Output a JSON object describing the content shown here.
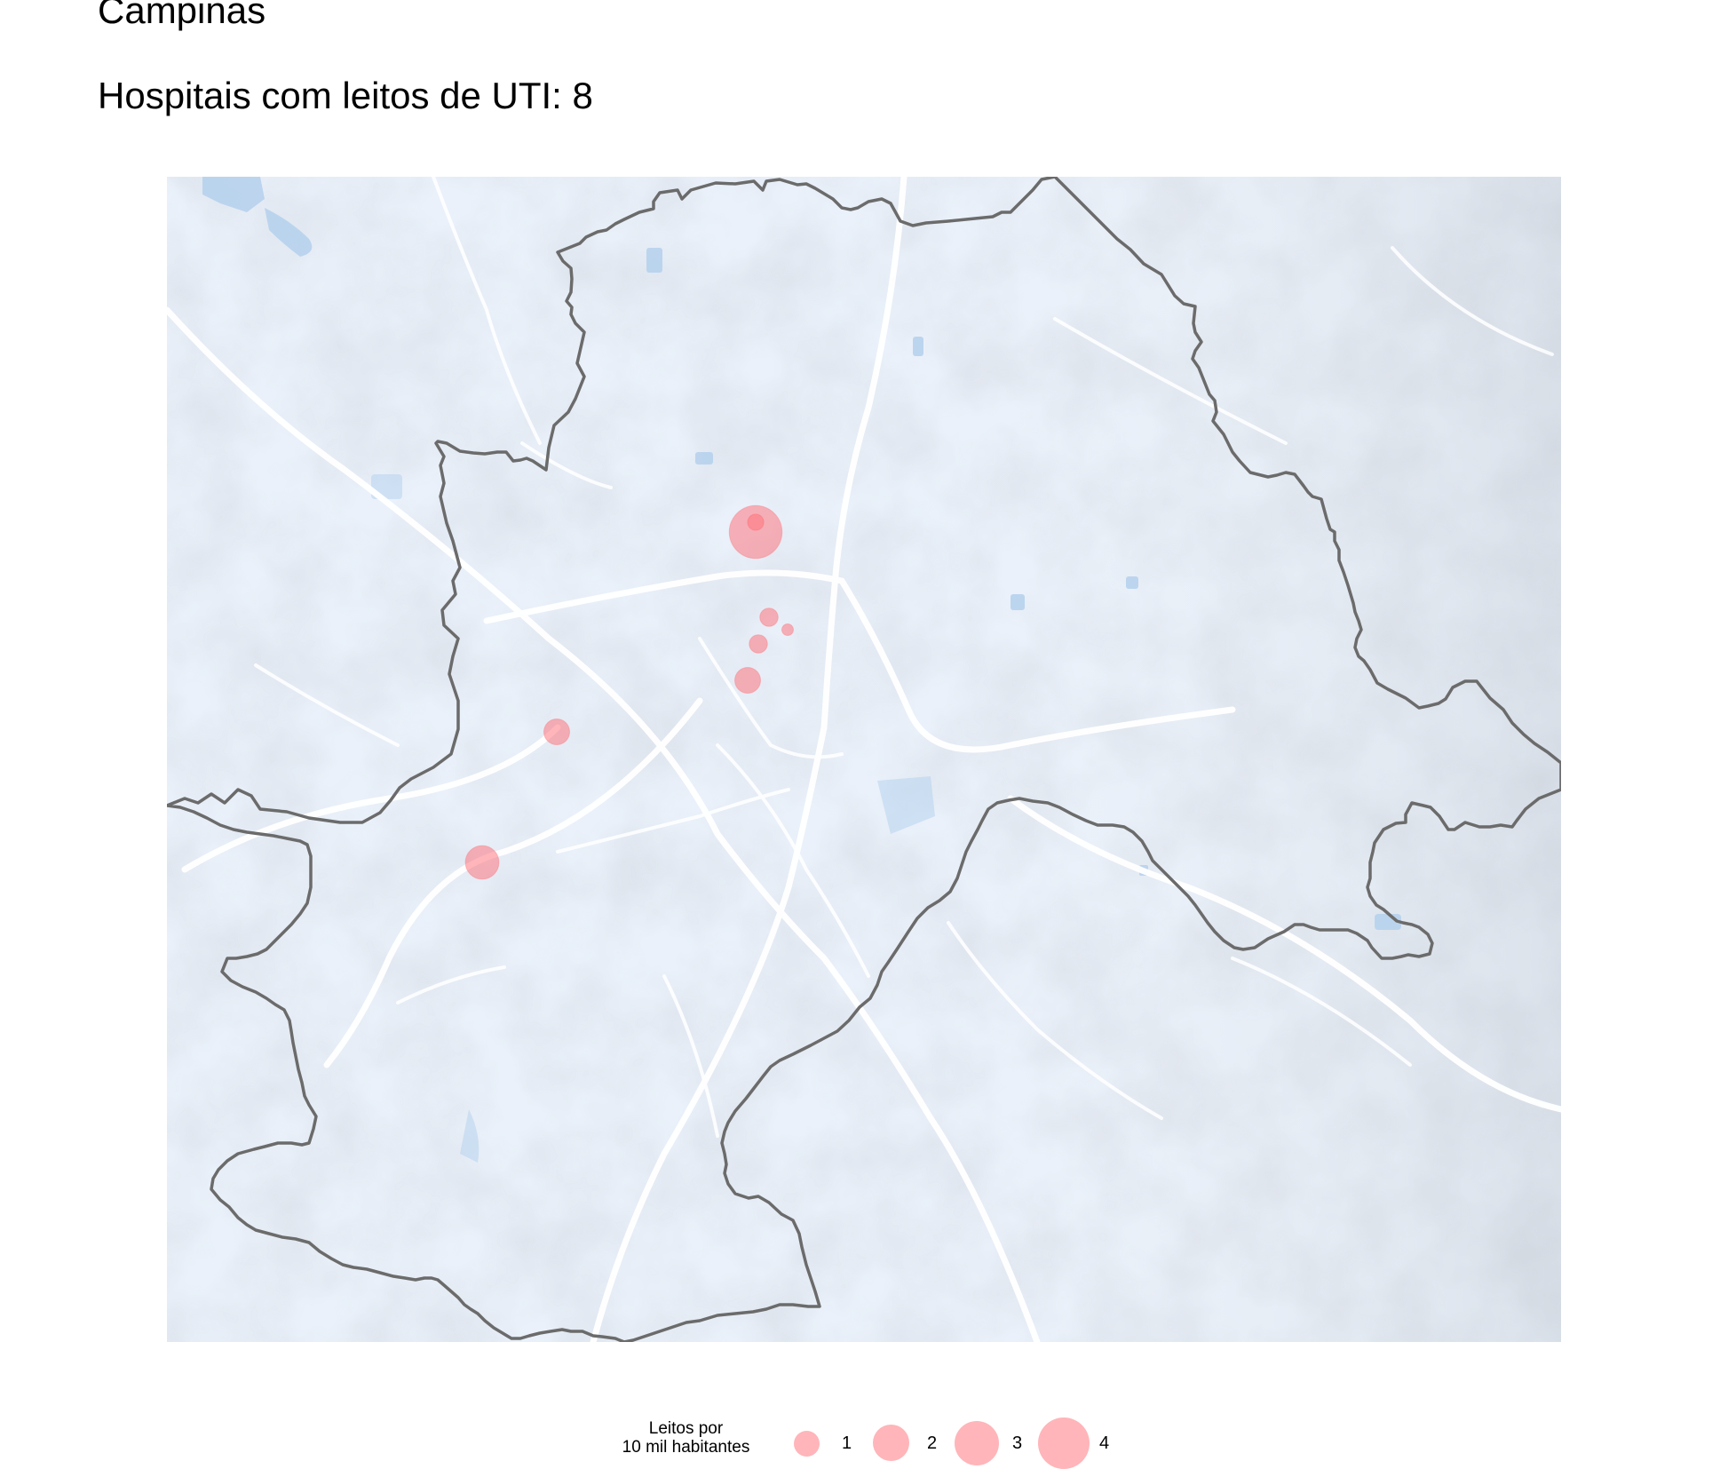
{
  "title": "Campinas",
  "subtitle": "Hospitais com leitos de UTI: 8",
  "map": {
    "basemap_colors": {
      "land": "#eaf1fa",
      "hillshade": "#c8cdd4",
      "water": "#b7d2ee",
      "roads": "#ffffff",
      "boundary": "#6b6b6b"
    },
    "marker_color": "#ff6b73",
    "marker_opacity": 0.5,
    "hospitals": [
      {
        "leitos_por_10mil": 4.2
      },
      {
        "leitos_por_10mil": 0.4
      },
      {
        "leitos_por_10mil": 0.5
      },
      {
        "leitos_por_10mil": 0.2
      },
      {
        "leitos_por_10mil": 0.5
      },
      {
        "leitos_por_10mil": 1.0
      },
      {
        "leitos_por_10mil": 1.0
      },
      {
        "leitos_por_10mil": 1.7
      }
    ]
  },
  "legend": {
    "title": "Leitos por\n10 mil habitantes",
    "values": [
      "1",
      "2",
      "3",
      "4"
    ]
  }
}
